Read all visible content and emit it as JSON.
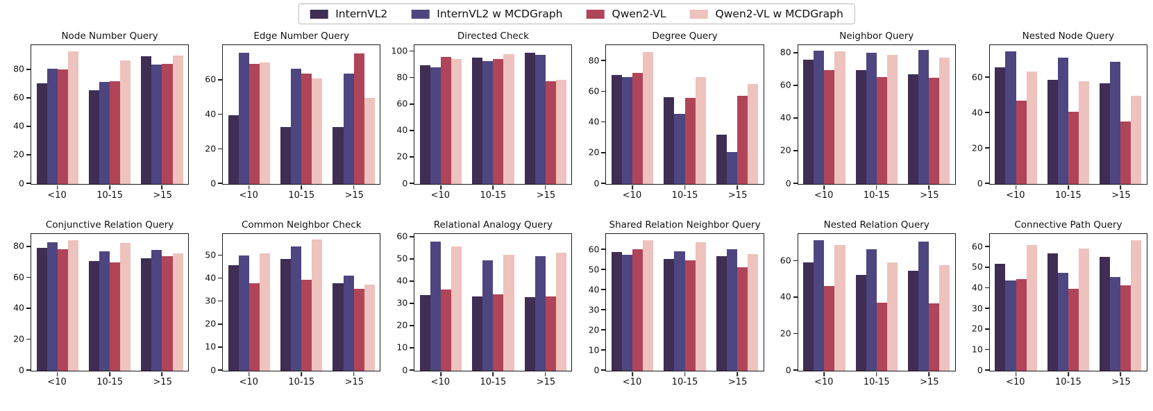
{
  "legend": {
    "items": [
      {
        "label": "InternVL2",
        "color": "#3f2d54"
      },
      {
        "label": "InternVL2 w MCDGraph",
        "color": "#4d4680"
      },
      {
        "label": "Qwen2-VL",
        "color": "#b04459"
      },
      {
        "label": "Qwen2-VL w MCDGraph",
        "color": "#eec2bd"
      }
    ]
  },
  "chart_data": [
    {
      "type": "bar",
      "title": "Node Number Query",
      "categories": [
        "<10",
        "10-15",
        ">15"
      ],
      "yticks": [
        0,
        20,
        40,
        60,
        80
      ],
      "ylim": [
        0,
        97.5
      ],
      "legend_position": "figure-top",
      "grid": false,
      "series": [
        {
          "name": "InternVL2",
          "values": [
            70.5,
            66,
            89.5
          ]
        },
        {
          "name": "InternVL2 w MCDGraph",
          "values": [
            81,
            71.5,
            84
          ]
        },
        {
          "name": "Qwen2-VL",
          "values": [
            80.5,
            72,
            84.5
          ]
        },
        {
          "name": "Qwen2-VL w MCDGraph",
          "values": [
            93,
            87,
            90
          ]
        }
      ]
    },
    {
      "type": "bar",
      "title": "Edge Number Query",
      "categories": [
        "<10",
        "10-15",
        ">15"
      ],
      "yticks": [
        0,
        20,
        40,
        60
      ],
      "ylim": [
        0,
        80.5
      ],
      "legend_position": "figure-top",
      "grid": false,
      "series": [
        {
          "name": "InternVL2",
          "values": [
            40,
            33,
            33
          ]
        },
        {
          "name": "InternVL2 w MCDGraph",
          "values": [
            76,
            67,
            64
          ]
        },
        {
          "name": "Qwen2-VL",
          "values": [
            69.5,
            64,
            75.5
          ]
        },
        {
          "name": "Qwen2-VL w MCDGraph",
          "values": [
            70.5,
            61,
            50
          ]
        }
      ]
    },
    {
      "type": "bar",
      "title": "Directed Check",
      "categories": [
        "<10",
        "10-15",
        ">15"
      ],
      "yticks": [
        0,
        20,
        40,
        60,
        80,
        100
      ],
      "ylim": [
        0,
        105
      ],
      "legend_position": "figure-top",
      "grid": false,
      "series": [
        {
          "name": "InternVL2",
          "values": [
            90,
            95.5,
            99
          ]
        },
        {
          "name": "InternVL2 w MCDGraph",
          "values": [
            88,
            93,
            97.5
          ]
        },
        {
          "name": "Qwen2-VL",
          "values": [
            96,
            94.5,
            77.5
          ]
        },
        {
          "name": "Qwen2-VL w MCDGraph",
          "values": [
            94.5,
            98,
            79
          ]
        }
      ]
    },
    {
      "type": "bar",
      "title": "Degree Query",
      "categories": [
        "<10",
        "10-15",
        ">15"
      ],
      "yticks": [
        0,
        20,
        40,
        60,
        80
      ],
      "ylim": [
        0,
        90.5
      ],
      "legend_position": "figure-top",
      "grid": false,
      "series": [
        {
          "name": "InternVL2",
          "values": [
            71,
            56.5,
            32
          ]
        },
        {
          "name": "InternVL2 w MCDGraph",
          "values": [
            69.5,
            45.5,
            21
          ]
        },
        {
          "name": "Qwen2-VL",
          "values": [
            72.5,
            56,
            57.5
          ]
        },
        {
          "name": "Qwen2-VL w MCDGraph",
          "values": [
            86,
            69.5,
            65
          ]
        }
      ]
    },
    {
      "type": "bar",
      "title": "Neighbor Query",
      "categories": [
        "<10",
        "10-15",
        ">15"
      ],
      "yticks": [
        0,
        20,
        40,
        60,
        80
      ],
      "ylim": [
        0,
        85
      ],
      "legend_position": "figure-top",
      "grid": false,
      "series": [
        {
          "name": "InternVL2",
          "values": [
            76,
            69.5,
            67
          ]
        },
        {
          "name": "InternVL2 w MCDGraph",
          "values": [
            81.5,
            80.5,
            82
          ]
        },
        {
          "name": "Qwen2-VL",
          "values": [
            69.5,
            65.5,
            65
          ]
        },
        {
          "name": "Qwen2-VL w MCDGraph",
          "values": [
            81,
            79,
            77.5
          ]
        }
      ]
    },
    {
      "type": "bar",
      "title": "Nested Node Query",
      "categories": [
        "<10",
        "10-15",
        ">15"
      ],
      "yticks": [
        0,
        20,
        40,
        60
      ],
      "ylim": [
        0,
        78.5
      ],
      "legend_position": "figure-top",
      "grid": false,
      "series": [
        {
          "name": "InternVL2",
          "values": [
            66,
            59,
            57
          ]
        },
        {
          "name": "InternVL2 w MCDGraph",
          "values": [
            75,
            71.5,
            69
          ]
        },
        {
          "name": "Qwen2-VL",
          "values": [
            47,
            41,
            35.5
          ]
        },
        {
          "name": "Qwen2-VL w MCDGraph",
          "values": [
            63.5,
            58,
            50
          ]
        }
      ]
    },
    {
      "type": "bar",
      "title": "Conjunctive Relation Query",
      "categories": [
        "<10",
        "10-15",
        ">15"
      ],
      "yticks": [
        0,
        20,
        40,
        60,
        80
      ],
      "ylim": [
        0,
        88.5
      ],
      "legend_position": "figure-top",
      "grid": false,
      "series": [
        {
          "name": "InternVL2",
          "values": [
            79.5,
            71,
            73
          ]
        },
        {
          "name": "InternVL2 w MCDGraph",
          "values": [
            83,
            77.5,
            78
          ]
        },
        {
          "name": "Qwen2-VL",
          "values": [
            78.5,
            70,
            74
          ]
        },
        {
          "name": "Qwen2-VL w MCDGraph",
          "values": [
            84.5,
            82.5,
            76
          ]
        }
      ]
    },
    {
      "type": "bar",
      "title": "Common Neighbor Check",
      "categories": [
        "<10",
        "10-15",
        ">15"
      ],
      "yticks": [
        0,
        10,
        20,
        30,
        40,
        50
      ],
      "ylim": [
        0,
        59.5
      ],
      "legend_position": "figure-top",
      "grid": false,
      "series": [
        {
          "name": "InternVL2",
          "values": [
            46,
            48.5,
            38
          ]
        },
        {
          "name": "InternVL2 w MCDGraph",
          "values": [
            50,
            54,
            41.5
          ]
        },
        {
          "name": "Qwen2-VL",
          "values": [
            38,
            39.5,
            35.5
          ]
        },
        {
          "name": "Qwen2-VL w MCDGraph",
          "values": [
            51,
            57,
            37.5
          ]
        }
      ]
    },
    {
      "type": "bar",
      "title": "Relational Analogy Query",
      "categories": [
        "<10",
        "10-15",
        ">15"
      ],
      "yticks": [
        0,
        10,
        20,
        30,
        40,
        50,
        60
      ],
      "ylim": [
        0,
        61.5
      ],
      "legend_position": "figure-top",
      "grid": false,
      "series": [
        {
          "name": "InternVL2",
          "values": [
            34,
            33.5,
            33
          ]
        },
        {
          "name": "InternVL2 w MCDGraph",
          "values": [
            58,
            49.5,
            51.5
          ]
        },
        {
          "name": "Qwen2-VL",
          "values": [
            36.5,
            34.5,
            33.5
          ]
        },
        {
          "name": "Qwen2-VL w MCDGraph",
          "values": [
            56,
            52,
            53
          ]
        }
      ]
    },
    {
      "type": "bar",
      "title": "Shared Relation Neighbor Query",
      "categories": [
        "<10",
        "10-15",
        ">15"
      ],
      "yticks": [
        0,
        10,
        20,
        30,
        40,
        50,
        60
      ],
      "ylim": [
        0,
        68
      ],
      "legend_position": "figure-top",
      "grid": false,
      "series": [
        {
          "name": "InternVL2",
          "values": [
            59,
            55.5,
            57
          ]
        },
        {
          "name": "InternVL2 w MCDGraph",
          "values": [
            57.5,
            59.5,
            60.5
          ]
        },
        {
          "name": "Qwen2-VL",
          "values": [
            60.5,
            55,
            51.5
          ]
        },
        {
          "name": "Qwen2-VL w MCDGraph",
          "values": [
            65,
            64,
            58
          ]
        }
      ]
    },
    {
      "type": "bar",
      "title": "Nested Relation Query",
      "categories": [
        "<10",
        "10-15",
        ">15"
      ],
      "yticks": [
        0,
        20,
        40,
        60
      ],
      "ylim": [
        0,
        75
      ],
      "legend_position": "figure-top",
      "grid": false,
      "series": [
        {
          "name": "InternVL2",
          "values": [
            59.5,
            52.5,
            55
          ]
        },
        {
          "name": "InternVL2 w MCDGraph",
          "values": [
            71.5,
            66.5,
            71
          ]
        },
        {
          "name": "Qwen2-VL",
          "values": [
            46.5,
            37.5,
            37
          ]
        },
        {
          "name": "Qwen2-VL w MCDGraph",
          "values": [
            69,
            59.5,
            58
          ]
        }
      ]
    },
    {
      "type": "bar",
      "title": "Connective Path Query",
      "categories": [
        "<10",
        "10-15",
        ">15"
      ],
      "yticks": [
        0,
        10,
        20,
        30,
        40,
        50,
        60
      ],
      "ylim": [
        0,
        66.5
      ],
      "legend_position": "figure-top",
      "grid": false,
      "series": [
        {
          "name": "InternVL2",
          "values": [
            52,
            57,
            55.5
          ]
        },
        {
          "name": "InternVL2 w MCDGraph",
          "values": [
            44,
            47.5,
            45.5
          ]
        },
        {
          "name": "Qwen2-VL",
          "values": [
            44.5,
            40,
            41.5
          ]
        },
        {
          "name": "Qwen2-VL w MCDGraph",
          "values": [
            61,
            59.5,
            63.5
          ]
        }
      ]
    }
  ]
}
